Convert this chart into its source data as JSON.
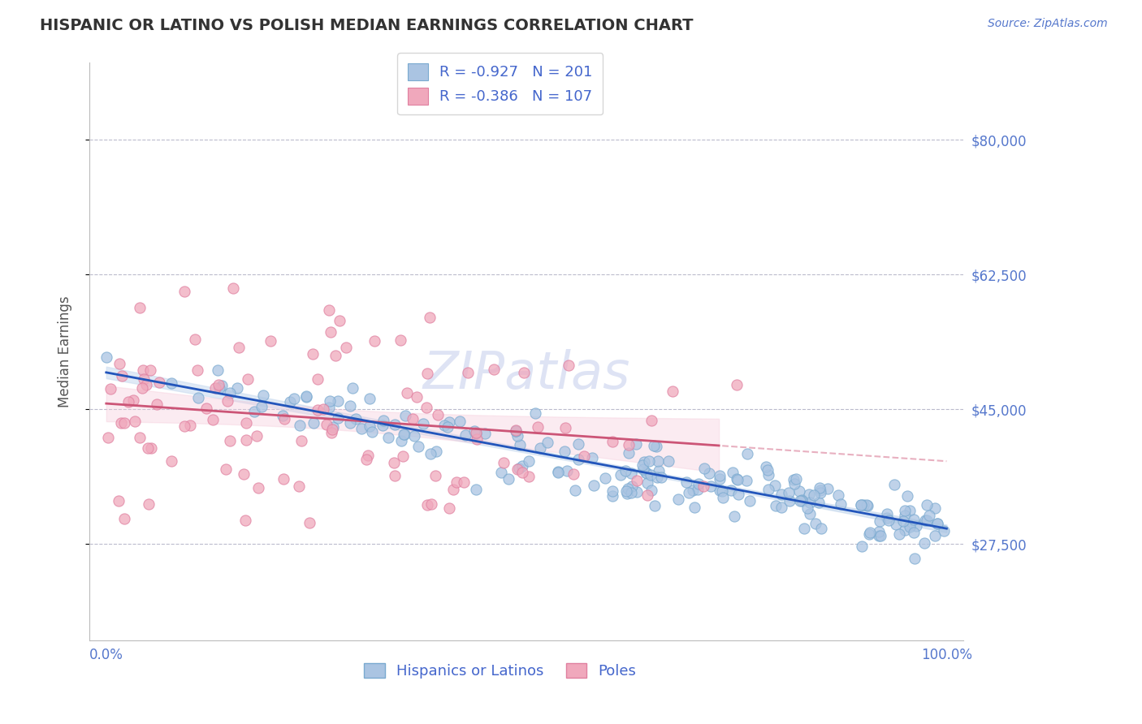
{
  "title": "HISPANIC OR LATINO VS POLISH MEDIAN EARNINGS CORRELATION CHART",
  "source": "Source: ZipAtlas.com",
  "ylabel": "Median Earnings",
  "ytick_labels": [
    "$27,500",
    "$45,000",
    "$62,500",
    "$80,000"
  ],
  "ytick_values": [
    27500,
    45000,
    62500,
    80000
  ],
  "ylim": [
    15000,
    90000
  ],
  "xlim": [
    -0.02,
    1.02
  ],
  "xtick_labels": [
    "0.0%",
    "100.0%"
  ],
  "xtick_values": [
    0.0,
    1.0
  ],
  "blue_R": -0.927,
  "blue_N": 201,
  "pink_R": -0.386,
  "pink_N": 107,
  "blue_color": "#aac4e2",
  "pink_color": "#f0a8bc",
  "blue_edge_color": "#7aaad0",
  "pink_edge_color": "#e080a0",
  "blue_line_color": "#2255bb",
  "pink_line_color": "#cc5577",
  "pink_line_dash_color": "#e8b0c0",
  "blue_ci_color": "#ccddf0",
  "title_color": "#333333",
  "axis_label_color": "#5577cc",
  "grid_color": "#bbbbcc",
  "watermark_color": "#d0d8f0",
  "legend_text_color": "#4466cc",
  "background_color": "#ffffff",
  "title_fontsize": 14,
  "axis_label_fontsize": 12,
  "tick_fontsize": 12,
  "legend_fontsize": 13,
  "blue_intercept": 48500,
  "blue_slope": -21000,
  "pink_intercept": 48000,
  "pink_slope": -8000
}
